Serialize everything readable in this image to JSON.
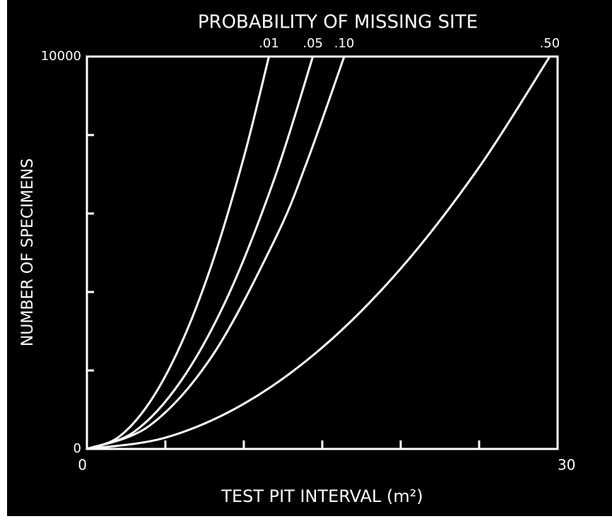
{
  "chart_data": {
    "type": "line",
    "title": "PROBABILITY OF MISSING SITE",
    "xlabel": "TEST PIT INTERVAL (m²)",
    "ylabel": "NUMBER OF SPECIMENS",
    "xlim": [
      0,
      30
    ],
    "ylim": [
      0,
      10000
    ],
    "xticks": [
      0,
      30
    ],
    "xminorticks": [
      5,
      10,
      15,
      20,
      25
    ],
    "yticks": [
      0,
      10000
    ],
    "yminorticks": [
      2000,
      4000,
      6000,
      8000
    ],
    "series": [
      {
        "name": ".01",
        "color": "#ffffff",
        "x": [
          0,
          2,
          4,
          6,
          8,
          10,
          11.6
        ],
        "values": [
          0,
          297,
          1189,
          2675,
          4756,
          7432,
          10000
        ]
      },
      {
        "name": ".05",
        "color": "#ffffff",
        "x": [
          0,
          3,
          6,
          9,
          12,
          14.4
        ],
        "values": [
          0,
          434,
          1736,
          3906,
          6944,
          10000
        ]
      },
      {
        "name": ".10",
        "color": "#ffffff",
        "x": [
          0,
          4,
          8,
          12,
          14,
          16.4
        ],
        "values": [
          0,
          595,
          2380,
          5355,
          7290,
          10000
        ]
      },
      {
        "name": ".50",
        "color": "#ffffff",
        "x": [
          0,
          5,
          10,
          15,
          20,
          25,
          29.5
        ],
        "values": [
          0,
          287,
          1149,
          2585,
          4596,
          7181,
          10000
        ]
      }
    ]
  }
}
